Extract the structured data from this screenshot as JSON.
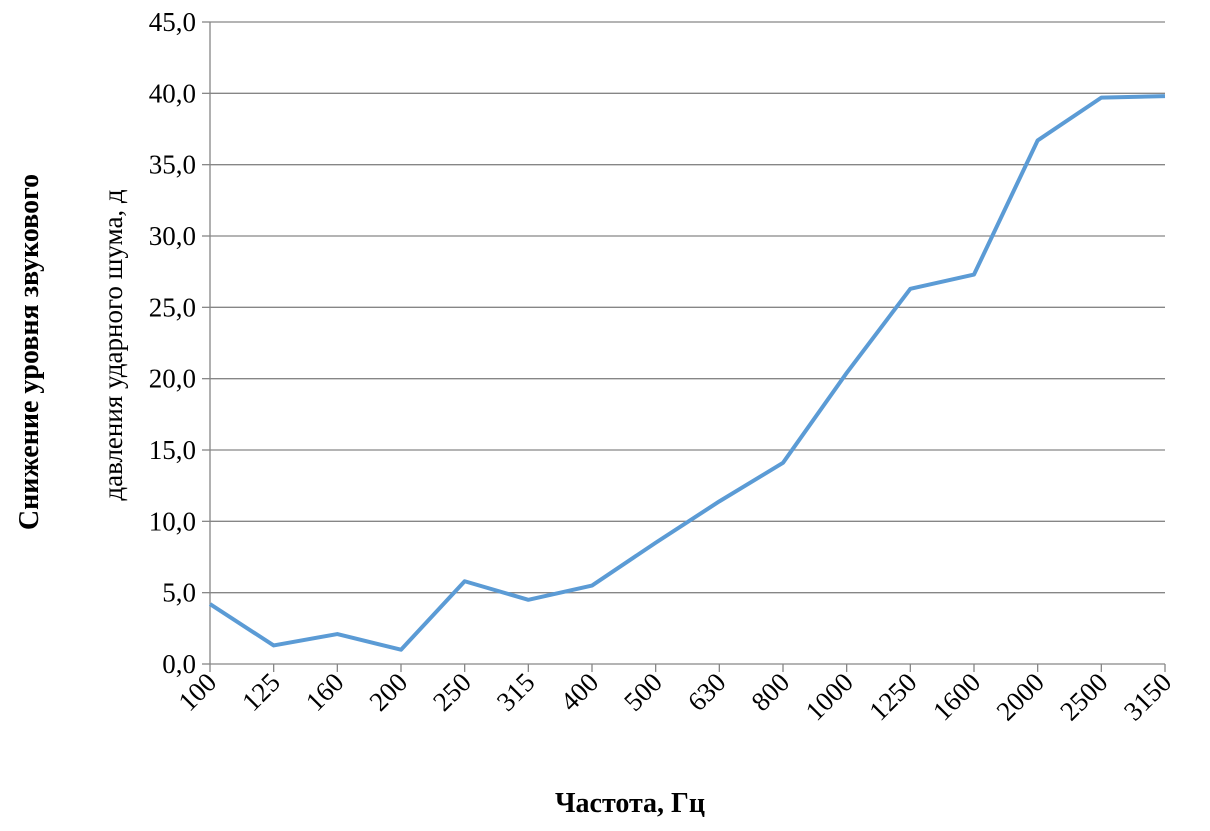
{
  "chart_data": {
    "type": "line",
    "xlabel": "Частота, Гц",
    "ylabel": [
      "Снижение уровня звукового",
      "давления ударного шума, д"
    ],
    "categories": [
      "100",
      "125",
      "160",
      "200",
      "250",
      "315",
      "400",
      "500",
      "630",
      "800",
      "1000",
      "1250",
      "1600",
      "2000",
      "2500",
      "3150"
    ],
    "series": [
      {
        "color": "#5b9bd5",
        "values": [
          4.2,
          1.3,
          2.1,
          1.0,
          5.8,
          4.5,
          5.5,
          8.5,
          11.4,
          14.1,
          20.4,
          26.3,
          27.3,
          36.7,
          39.7,
          39.8
        ]
      }
    ],
    "ylim": [
      0,
      45
    ],
    "yticks": [
      {
        "value": 0,
        "label": "0,0"
      },
      {
        "value": 5,
        "label": "5,0"
      },
      {
        "value": 10,
        "label": "10,0"
      },
      {
        "value": 15,
        "label": "15,0"
      },
      {
        "value": 20,
        "label": "20,0"
      },
      {
        "value": 25,
        "label": "25,0"
      },
      {
        "value": 30,
        "label": "30,0"
      },
      {
        "value": 35,
        "label": "35,0"
      },
      {
        "value": 40,
        "label": "40,0"
      },
      {
        "value": 45,
        "label": "45,0"
      }
    ],
    "grid": true
  }
}
